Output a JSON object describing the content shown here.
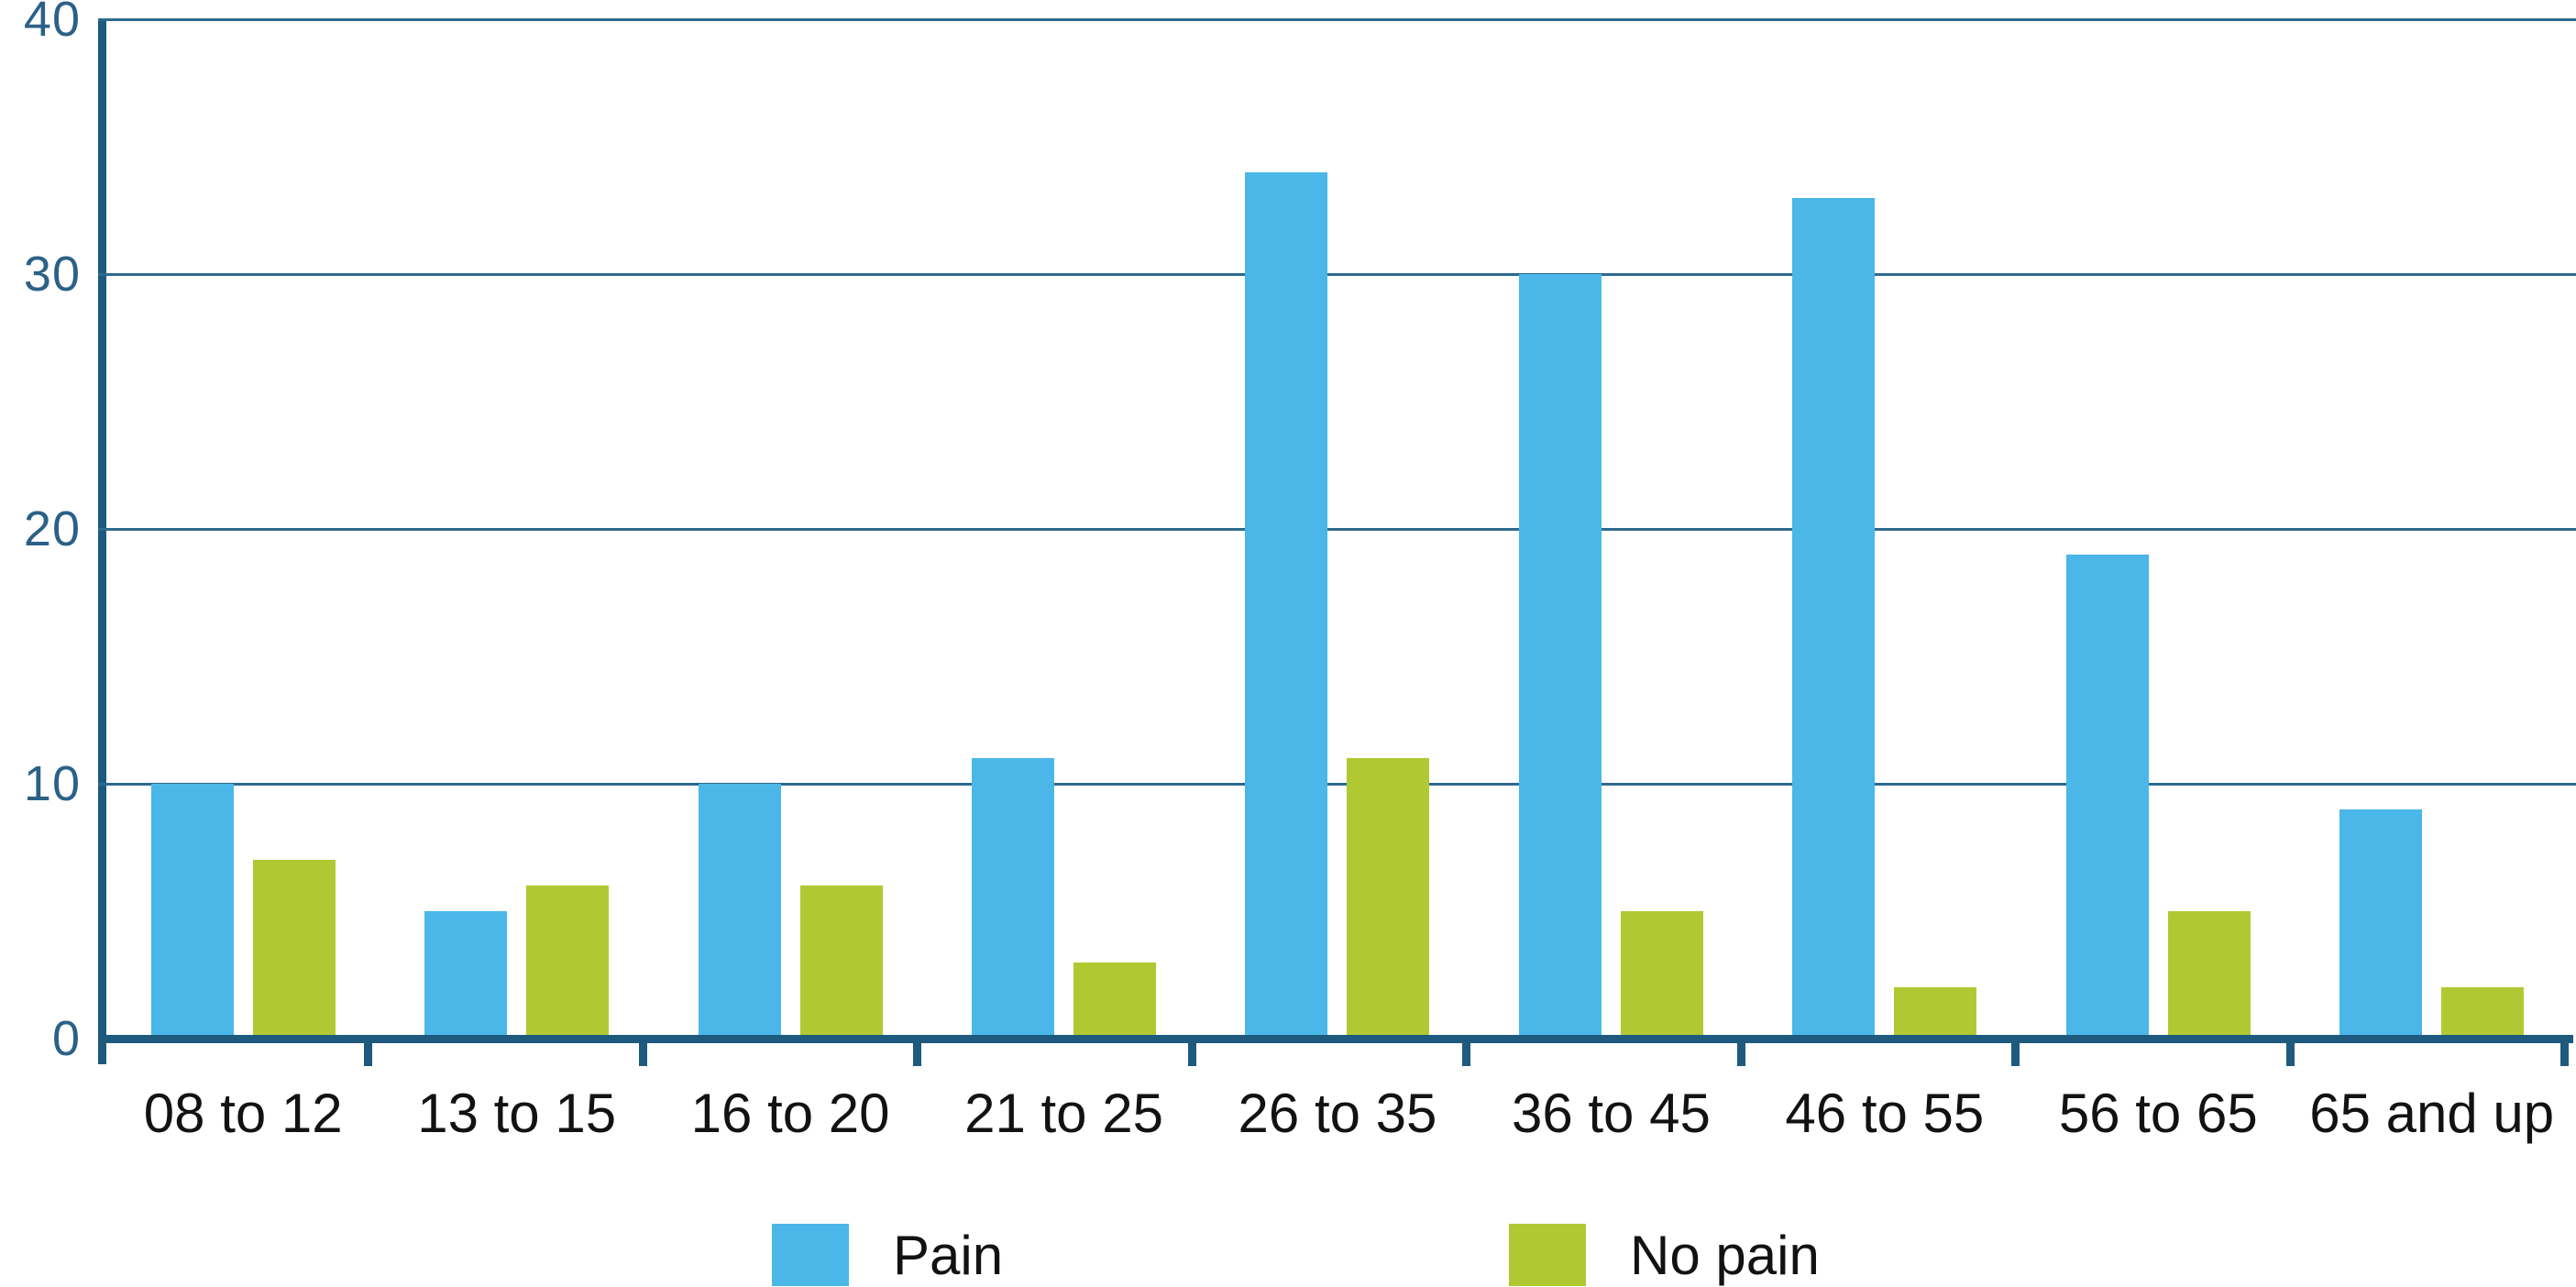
{
  "chart_data": {
    "type": "bar",
    "title": "",
    "xlabel": "",
    "ylabel": "",
    "categories": [
      "08 to 12",
      "13 to 15",
      "16 to 20",
      "21 to 25",
      "26 to 35",
      "36 to 45",
      "46 to 55",
      "56 to 65",
      "65 and up"
    ],
    "series": [
      {
        "name": "Pain",
        "color": "#4ab7e8",
        "values": [
          10,
          5,
          10,
          11,
          34,
          30,
          33,
          19,
          9
        ]
      },
      {
        "name": "No pain",
        "color": "#b0c933",
        "values": [
          7,
          6,
          6,
          3,
          11,
          5,
          2,
          5,
          2
        ]
      }
    ],
    "ylim": [
      0,
      40
    ],
    "yticks": [
      0,
      10,
      20,
      30,
      40
    ],
    "grid": true,
    "legend_position": "bottom"
  },
  "colors": {
    "axis": "#1e5a7e",
    "gridline": "#2e6a8e",
    "y_tick_label": "#2b6186",
    "x_tick_label": "#121212",
    "background": "#ffffff"
  }
}
